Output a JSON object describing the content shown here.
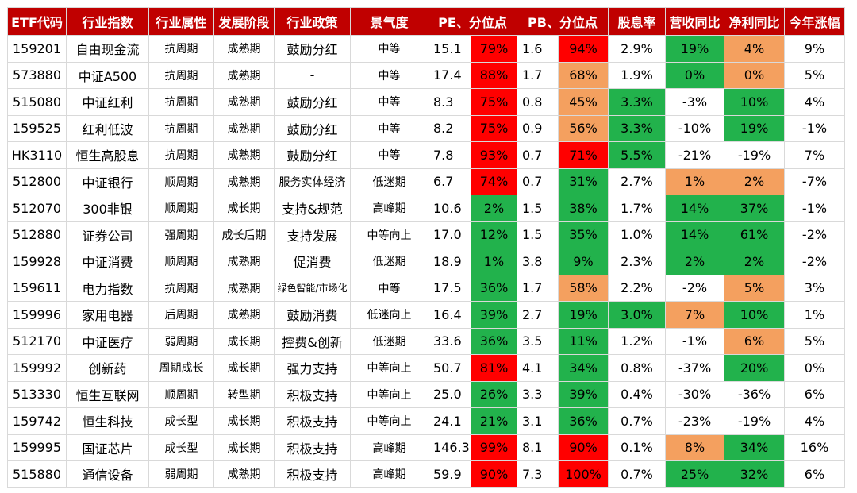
{
  "colors": {
    "header_bg": "#c00000",
    "red": "#ff0000",
    "orange": "#f4a05f",
    "green": "#22b24c"
  },
  "headers": [
    "ETF代码",
    "行业指数",
    "行业属性",
    "发展阶段",
    "行业政策",
    "景气度",
    "PE、分位点",
    "PB、分位点",
    "股息率",
    "营收同比",
    "净利同比",
    "今年涨幅"
  ],
  "rows": [
    {
      "code": "159201",
      "index": "自由现金流",
      "attr": "抗周期",
      "stage": "成熟期",
      "policy": "鼓励分红",
      "boom": "中等",
      "pe": "15.1",
      "pe_pct": "79%",
      "pe_c": "red",
      "pb": "1.6",
      "pb_pct": "94%",
      "pb_c": "red",
      "div": "2.9%",
      "div_c": "",
      "rev": "19%",
      "rev_c": "green",
      "np": "4%",
      "np_c": "orange",
      "ytd": "9%"
    },
    {
      "code": "573880",
      "index": "中证A500",
      "attr": "抗周期",
      "stage": "成熟期",
      "policy": "-",
      "boom": "中等",
      "pe": "17.4",
      "pe_pct": "88%",
      "pe_c": "red",
      "pb": "1.7",
      "pb_pct": "68%",
      "pb_c": "orange",
      "div": "1.9%",
      "div_c": "",
      "rev": "0%",
      "rev_c": "green",
      "np": "0%",
      "np_c": "orange",
      "ytd": "5%"
    },
    {
      "code": "515080",
      "index": "中证红利",
      "attr": "抗周期",
      "stage": "成熟期",
      "policy": "鼓励分红",
      "boom": "中等",
      "pe": "8.3",
      "pe_pct": "75%",
      "pe_c": "red",
      "pb": "0.8",
      "pb_pct": "45%",
      "pb_c": "orange",
      "div": "3.3%",
      "div_c": "green",
      "rev": "-3%",
      "rev_c": "",
      "np": "10%",
      "np_c": "green",
      "ytd": "4%"
    },
    {
      "code": "159525",
      "index": "红利低波",
      "attr": "抗周期",
      "stage": "成熟期",
      "policy": "鼓励分红",
      "boom": "中等",
      "pe": "8.2",
      "pe_pct": "75%",
      "pe_c": "red",
      "pb": "0.9",
      "pb_pct": "56%",
      "pb_c": "orange",
      "div": "3.3%",
      "div_c": "green",
      "rev": "-10%",
      "rev_c": "",
      "np": "19%",
      "np_c": "green",
      "ytd": "-1%"
    },
    {
      "code": "HK3110",
      "index": "恒生高股息",
      "attr": "抗周期",
      "stage": "成熟期",
      "policy": "鼓励分红",
      "boom": "中等",
      "pe": "7.8",
      "pe_pct": "93%",
      "pe_c": "red",
      "pb": "0.7",
      "pb_pct": "71%",
      "pb_c": "red",
      "div": "5.5%",
      "div_c": "green",
      "rev": "-21%",
      "rev_c": "",
      "np": "-19%",
      "np_c": "",
      "ytd": "7%"
    },
    {
      "code": "512800",
      "index": "中证银行",
      "attr": "顺周期",
      "stage": "成熟期",
      "policy": "服务实体经济",
      "boom": "低迷期",
      "pe": "6.7",
      "pe_pct": "74%",
      "pe_c": "red",
      "pb": "0.7",
      "pb_pct": "31%",
      "pb_c": "green",
      "div": "2.7%",
      "div_c": "",
      "rev": "1%",
      "rev_c": "orange",
      "np": "2%",
      "np_c": "orange",
      "ytd": "-7%"
    },
    {
      "code": "512070",
      "index": "300非银",
      "attr": "顺周期",
      "stage": "成长期",
      "policy": "支持&规范",
      "boom": "高峰期",
      "pe": "10.6",
      "pe_pct": "2%",
      "pe_c": "green",
      "pb": "1.5",
      "pb_pct": "38%",
      "pb_c": "green",
      "div": "1.7%",
      "div_c": "",
      "rev": "14%",
      "rev_c": "green",
      "np": "37%",
      "np_c": "green",
      "ytd": "-1%"
    },
    {
      "code": "512880",
      "index": "证券公司",
      "attr": "强周期",
      "stage": "成长后期",
      "policy": "支持发展",
      "boom": "中等向上",
      "pe": "17.0",
      "pe_pct": "12%",
      "pe_c": "green",
      "pb": "1.5",
      "pb_pct": "35%",
      "pb_c": "green",
      "div": "1.0%",
      "div_c": "",
      "rev": "14%",
      "rev_c": "green",
      "np": "61%",
      "np_c": "green",
      "ytd": "-2%"
    },
    {
      "code": "159928",
      "index": "中证消费",
      "attr": "顺周期",
      "stage": "成熟期",
      "policy": "促消费",
      "boom": "低迷期",
      "pe": "18.9",
      "pe_pct": "1%",
      "pe_c": "green",
      "pb": "3.8",
      "pb_pct": "9%",
      "pb_c": "green",
      "div": "2.3%",
      "div_c": "",
      "rev": "2%",
      "rev_c": "green",
      "np": "2%",
      "np_c": "green",
      "ytd": "-2%"
    },
    {
      "code": "159611",
      "index": "电力指数",
      "attr": "抗周期",
      "stage": "成熟期",
      "policy": "绿色智能/市场化",
      "boom": "中等",
      "pe": "17.5",
      "pe_pct": "36%",
      "pe_c": "green",
      "pb": "1.7",
      "pb_pct": "58%",
      "pb_c": "orange",
      "div": "2.2%",
      "div_c": "",
      "rev": "-2%",
      "rev_c": "",
      "np": "5%",
      "np_c": "orange",
      "ytd": "3%"
    },
    {
      "code": "159996",
      "index": "家用电器",
      "attr": "后周期",
      "stage": "成熟期",
      "policy": "鼓励消费",
      "boom": "低迷向上",
      "pe": "16.4",
      "pe_pct": "39%",
      "pe_c": "green",
      "pb": "2.7",
      "pb_pct": "19%",
      "pb_c": "green",
      "div": "3.0%",
      "div_c": "green",
      "rev": "7%",
      "rev_c": "orange",
      "np": "10%",
      "np_c": "green",
      "ytd": "1%"
    },
    {
      "code": "512170",
      "index": "中证医疗",
      "attr": "弱周期",
      "stage": "成长期",
      "policy": "控费&创新",
      "boom": "低迷期",
      "pe": "33.6",
      "pe_pct": "36%",
      "pe_c": "green",
      "pb": "3.5",
      "pb_pct": "11%",
      "pb_c": "green",
      "div": "1.2%",
      "div_c": "",
      "rev": "-1%",
      "rev_c": "",
      "np": "6%",
      "np_c": "orange",
      "ytd": "5%"
    },
    {
      "code": "159992",
      "index": "创新药",
      "attr": "周期成长",
      "stage": "成长期",
      "policy": "强力支持",
      "boom": "中等向上",
      "pe": "50.7",
      "pe_pct": "81%",
      "pe_c": "red",
      "pb": "4.1",
      "pb_pct": "34%",
      "pb_c": "green",
      "div": "0.8%",
      "div_c": "",
      "rev": "-37%",
      "rev_c": "",
      "np": "20%",
      "np_c": "green",
      "ytd": "0%"
    },
    {
      "code": "513330",
      "index": "恒生互联网",
      "attr": "顺周期",
      "stage": "转型期",
      "policy": "积极支持",
      "boom": "中等向上",
      "pe": "25.0",
      "pe_pct": "26%",
      "pe_c": "green",
      "pb": "3.3",
      "pb_pct": "39%",
      "pb_c": "green",
      "div": "0.4%",
      "div_c": "",
      "rev": "-30%",
      "rev_c": "",
      "np": "-36%",
      "np_c": "",
      "ytd": "6%"
    },
    {
      "code": "159742",
      "index": "恒生科技",
      "attr": "成长型",
      "stage": "成长期",
      "policy": "积极支持",
      "boom": "中等向上",
      "pe": "24.1",
      "pe_pct": "21%",
      "pe_c": "green",
      "pb": "3.1",
      "pb_pct": "36%",
      "pb_c": "green",
      "div": "0.7%",
      "div_c": "",
      "rev": "-23%",
      "rev_c": "",
      "np": "-19%",
      "np_c": "",
      "ytd": "4%"
    },
    {
      "code": "159995",
      "index": "国证芯片",
      "attr": "成长型",
      "stage": "成长期",
      "policy": "积极支持",
      "boom": "高峰期",
      "pe": "146.3",
      "pe_pct": "99%",
      "pe_c": "red",
      "pb": "8.1",
      "pb_pct": "90%",
      "pb_c": "red",
      "div": "0.1%",
      "div_c": "",
      "rev": "8%",
      "rev_c": "orange",
      "np": "34%",
      "np_c": "green",
      "ytd": "16%"
    },
    {
      "code": "515880",
      "index": "通信设备",
      "attr": "弱周期",
      "stage": "成熟期",
      "policy": "积极支持",
      "boom": "高峰期",
      "pe": "59.9",
      "pe_pct": "90%",
      "pe_c": "red",
      "pb": "7.3",
      "pb_pct": "100%",
      "pb_c": "red",
      "div": "0.7%",
      "div_c": "",
      "rev": "25%",
      "rev_c": "green",
      "np": "32%",
      "np_c": "green",
      "ytd": "6%"
    }
  ]
}
